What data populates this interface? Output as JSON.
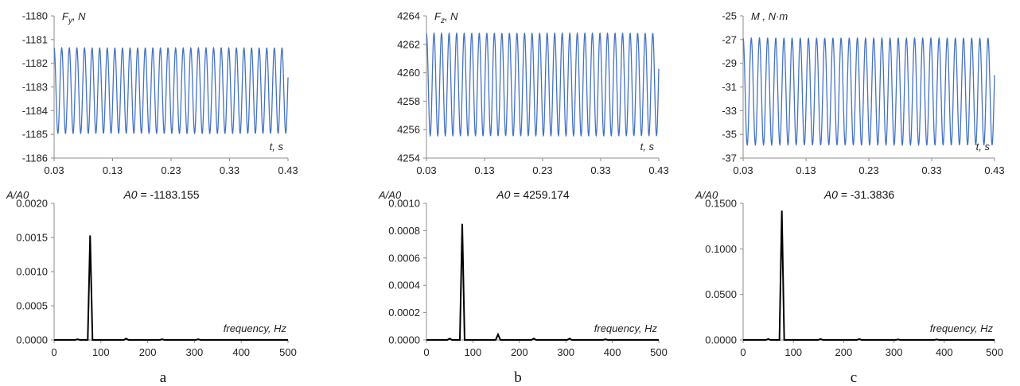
{
  "colors": {
    "time_series": "#4472c4",
    "spectrum": "#000000",
    "axis": "#8c8c8c",
    "text": "#222222"
  },
  "chart_data": [
    {
      "type": "line",
      "panel": "a",
      "ylabel": "F_y, N",
      "xlabel": "t, s",
      "xlim": [
        0.03,
        0.43
      ],
      "ylim": [
        -1186,
        -1180
      ],
      "xticks": [
        "0.03",
        "0.13",
        "0.23",
        "0.33",
        "0.43"
      ],
      "yticks": [
        "-1186",
        "-1185",
        "-1184",
        "-1183",
        "-1182",
        "-1181",
        "-1180"
      ],
      "series": [
        {
          "t_start": 0.03,
          "t_end": 0.43,
          "mean": -1183.155,
          "amplitude": 1.8,
          "frequency_hz": 77
        }
      ]
    },
    {
      "type": "line",
      "panel": "a",
      "title": "A0 = -1183.155",
      "ylabel": "A/A0",
      "xlabel": "frequency, Hz",
      "xlim": [
        0,
        500
      ],
      "ylim": [
        0,
        0.002
      ],
      "xticks": [
        "0",
        "100",
        "200",
        "300",
        "400",
        "500"
      ],
      "yticks": [
        "0.0000",
        "0.0005",
        "0.0010",
        "0.0015",
        "0.0020"
      ],
      "series": [
        {
          "x": [
            0,
            50,
            77,
            154,
            231,
            308,
            500
          ],
          "y": [
            0,
            1e-05,
            0.00153,
            2e-05,
            1e-05,
            1e-05,
            0
          ]
        }
      ]
    },
    {
      "type": "line",
      "panel": "b",
      "ylabel": "F_z, N",
      "xlabel": "t, s",
      "xlim": [
        0.03,
        0.43
      ],
      "ylim": [
        4254,
        4264
      ],
      "xticks": [
        "0.03",
        "0.13",
        "0.23",
        "0.33",
        "0.43"
      ],
      "yticks": [
        "4254",
        "4256",
        "4258",
        "4260",
        "4262",
        "4264"
      ],
      "series": [
        {
          "t_start": 0.03,
          "t_end": 0.43,
          "mean": 4259.174,
          "amplitude": 3.6,
          "frequency_hz": 77
        }
      ]
    },
    {
      "type": "line",
      "panel": "b",
      "title": "A0 = 4259.174",
      "ylabel": "A/A0",
      "xlabel": "frequency, Hz",
      "xlim": [
        0,
        500
      ],
      "ylim": [
        0,
        0.001
      ],
      "xticks": [
        "0",
        "100",
        "200",
        "300",
        "400",
        "500"
      ],
      "yticks": [
        "0.0000",
        "0.0002",
        "0.0004",
        "0.0006",
        "0.0008",
        "0.0010"
      ],
      "series": [
        {
          "x": [
            0,
            50,
            77,
            154,
            231,
            308,
            385,
            500
          ],
          "y": [
            0,
            1e-05,
            0.00085,
            4e-05,
            1e-05,
            1e-05,
            5e-06,
            0
          ]
        }
      ]
    },
    {
      "type": "line",
      "panel": "c",
      "ylabel": "M , N·m",
      "xlabel": "t, s",
      "xlim": [
        0.03,
        0.43
      ],
      "ylim": [
        -37,
        -25
      ],
      "xticks": [
        "0.03",
        "0.13",
        "0.23",
        "0.33",
        "0.43"
      ],
      "yticks": [
        "-37",
        "-35",
        "-33",
        "-31",
        "-29",
        "-27",
        "-25"
      ],
      "series": [
        {
          "t_start": 0.03,
          "t_end": 0.43,
          "mean": -31.3836,
          "amplitude": 4.5,
          "frequency_hz": 77
        }
      ]
    },
    {
      "type": "line",
      "panel": "c",
      "title": "A0 = -31.3836",
      "ylabel": "A/A0",
      "xlabel": "frequency, Hz",
      "xlim": [
        0,
        500
      ],
      "ylim": [
        0,
        0.15
      ],
      "xticks": [
        "0",
        "100",
        "200",
        "300",
        "400",
        "500"
      ],
      "yticks": [
        "0.0000",
        "0.0500",
        "0.1000",
        "0.1500"
      ],
      "series": [
        {
          "x": [
            0,
            50,
            77,
            154,
            231,
            308,
            385,
            500
          ],
          "y": [
            0,
            0.001,
            0.142,
            0.001,
            0.001,
            0.0005,
            0.0005,
            0
          ]
        }
      ]
    }
  ],
  "panel_labels": [
    "a",
    "b",
    "c"
  ]
}
